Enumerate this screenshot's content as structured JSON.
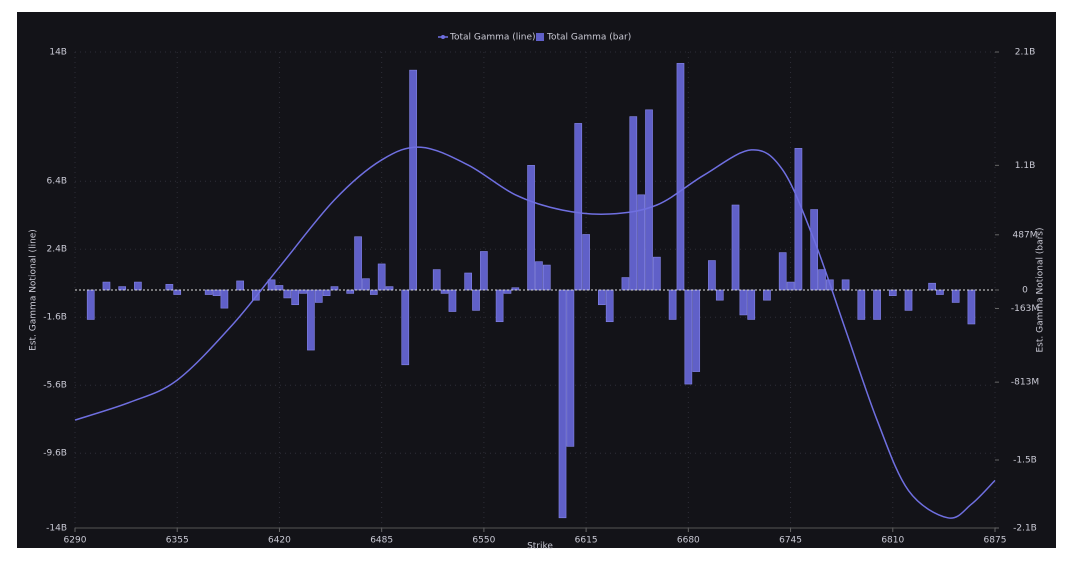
{
  "chart_data": {
    "type": "bar-line",
    "series": [
      {
        "name": "Total Gamma (line)",
        "type": "line",
        "axis": "y",
        "color": "#6f6fe0",
        "x": [
          6290,
          6325,
          6355,
          6390,
          6420,
          6455,
          6485,
          6510,
          6540,
          6570,
          6600,
          6630,
          6660,
          6690,
          6720,
          6740,
          6760,
          6780,
          6800,
          6820,
          6845,
          6860,
          6875
        ],
        "values": [
          -7650000000,
          -6600000000,
          -5300000000,
          -2060000000,
          1350000000,
          5300000000,
          7650000000,
          8400000000,
          7350000000,
          5600000000,
          4700000000,
          4470000000,
          5000000000,
          6760000000,
          8240000000,
          7060000000,
          2940000000,
          -2350000000,
          -7650000000,
          -11800000000,
          -13400000000,
          -12600000000,
          -11200000000
        ]
      },
      {
        "name": "Total Gamma (bar)",
        "type": "bar",
        "axis": "y2",
        "color": "#6060c8",
        "x": [
          6300,
          6310,
          6320,
          6330,
          6350,
          6355,
          6375,
          6380,
          6385,
          6395,
          6405,
          6415,
          6420,
          6425,
          6430,
          6435,
          6440,
          6445,
          6450,
          6455,
          6465,
          6470,
          6475,
          6480,
          6485,
          6490,
          6500,
          6505,
          6520,
          6525,
          6530,
          6540,
          6545,
          6550,
          6560,
          6565,
          6570,
          6580,
          6585,
          6590,
          6600,
          6605,
          6610,
          6615,
          6625,
          6630,
          6640,
          6645,
          6650,
          6655,
          6660,
          6670,
          6675,
          6680,
          6685,
          6695,
          6700,
          6710,
          6715,
          6720,
          6730,
          6740,
          6745,
          6750,
          6760,
          6765,
          6770,
          6780,
          6790,
          6800,
          6810,
          6820,
          6835,
          6840,
          6850,
          6860
        ],
        "values": [
          -260000000,
          70000000,
          30000000,
          70000000,
          50000000,
          -40000000,
          -40000000,
          -50000000,
          -160000000,
          80000000,
          -90000000,
          90000000,
          40000000,
          -70000000,
          -130000000,
          -30000000,
          -530000000,
          -110000000,
          -50000000,
          30000000,
          -30000000,
          470000000,
          100000000,
          -40000000,
          230000000,
          30000000,
          -660000000,
          1940000000,
          180000000,
          -30000000,
          -190000000,
          150000000,
          -180000000,
          340000000,
          -280000000,
          -30000000,
          20000000,
          1100000000,
          250000000,
          220000000,
          -2010000000,
          -1380000000,
          1470000000,
          490000000,
          -130000000,
          -280000000,
          110000000,
          1530000000,
          840000000,
          1590000000,
          290000000,
          -260000000,
          2000000000,
          -830000000,
          -720000000,
          260000000,
          -90000000,
          750000000,
          -220000000,
          -260000000,
          -90000000,
          330000000,
          70000000,
          1250000000,
          710000000,
          180000000,
          90000000,
          90000000,
          -260000000,
          -260000000,
          -50000000,
          -180000000,
          60000000,
          -40000000,
          -110000000,
          -300000000
        ]
      }
    ],
    "x_label": "Strike",
    "y_label": "Est. Gamma Notional (line)",
    "y2_label": "Est. Gamma Notional (bars)",
    "xlim": [
      6290,
      6875
    ],
    "xticks": [
      6290,
      6355,
      6420,
      6485,
      6550,
      6615,
      6680,
      6745,
      6810,
      6875
    ],
    "ylim": [
      -14000000000,
      14000000000
    ],
    "yticks": [
      {
        "value": -14000000000,
        "label": "-14B"
      },
      {
        "value": -9600000000,
        "label": "-9.6B"
      },
      {
        "value": -5600000000,
        "label": "-5.6B"
      },
      {
        "value": -1600000000,
        "label": "-1.6B"
      },
      {
        "value": 2400000000,
        "label": "2.4B"
      },
      {
        "value": 6400000000,
        "label": "6.4B"
      },
      {
        "value": 14000000000,
        "label": "14B"
      }
    ],
    "y2lim": [
      -2100000000,
      2100000000
    ],
    "y2ticks": [
      {
        "value": -2100000000,
        "label": "-2.1B"
      },
      {
        "value": -1500000000,
        "label": "-1.5B"
      },
      {
        "value": -813000000,
        "label": "-813M"
      },
      {
        "value": -163000000,
        "label": "-163M"
      },
      0,
      {
        "value": 487000000,
        "label": "487M"
      },
      {
        "value": 1100000000,
        "label": "1.1B"
      },
      {
        "value": 2100000000,
        "label": "2.1B"
      }
    ],
    "grid": true
  }
}
